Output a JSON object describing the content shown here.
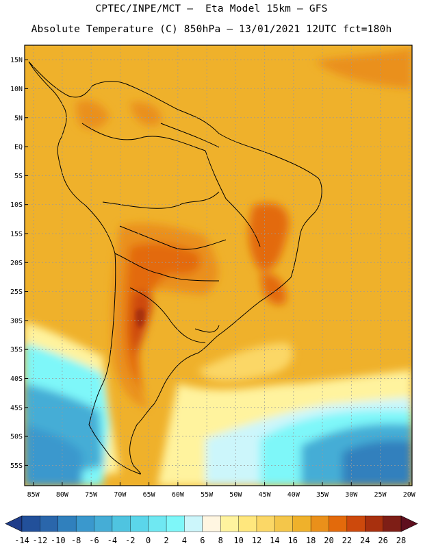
{
  "header": {
    "line1": "CPTEC/INPE/MCT –  Eta Model 15km – GFS",
    "line2": "Absolute Temperature (C) 850hPa – 13/01/2021 12UTC fct=180h"
  },
  "map": {
    "lat_labels": [
      "15N",
      "10N",
      "5N",
      "EQ",
      "5S",
      "10S",
      "15S",
      "20S",
      "25S",
      "30S",
      "35S",
      "40S",
      "45S",
      "50S",
      "55S"
    ],
    "lat_values": [
      15,
      10,
      5,
      0,
      -5,
      -10,
      -15,
      -20,
      -25,
      -30,
      -35,
      -40,
      -45,
      -50,
      -55
    ],
    "lon_labels": [
      "85W",
      "80W",
      "75W",
      "70W",
      "65W",
      "60W",
      "55W",
      "50W",
      "45W",
      "40W",
      "35W",
      "30W",
      "25W",
      "20W"
    ],
    "lon_values": [
      -85,
      -80,
      -75,
      -70,
      -65,
      -60,
      -55,
      -50,
      -45,
      -40,
      -35,
      -30,
      -25,
      -20
    ],
    "lat_range": [
      -58.5,
      17.5
    ],
    "lon_range": [
      -86.5,
      -19.5
    ]
  },
  "colorbar": {
    "labels": [
      "-14",
      "-12",
      "-10",
      "-8",
      "-6",
      "-4",
      "-2",
      "0",
      "2",
      "4",
      "6",
      "8",
      "10",
      "12",
      "14",
      "16",
      "18",
      "20",
      "22",
      "24",
      "26",
      "28"
    ],
    "colors": [
      "#1f3d8a",
      "#22509a",
      "#2a66ab",
      "#3080bd",
      "#3a98cd",
      "#45add6",
      "#4fc4e0",
      "#5bd6ea",
      "#6fe8f2",
      "#7ef7f9",
      "#ccf6fb",
      "#fff6e1",
      "#fff39e",
      "#ffe77d",
      "#fbd766",
      "#f4c64a",
      "#efb12b",
      "#ea901a",
      "#e36a0b",
      "#cd490c",
      "#a8300e",
      "#7e1e16",
      "#5e0f1e"
    ]
  },
  "colors": {
    "base": "#efb12b",
    "warm_1": "#ea901a",
    "warm_2": "#e36a0b",
    "warm_3": "#cd490c",
    "cool_light": "#fff39e",
    "cool_1": "#7ef7f9",
    "cool_2": "#45add6",
    "cool_3": "#3080bd"
  }
}
